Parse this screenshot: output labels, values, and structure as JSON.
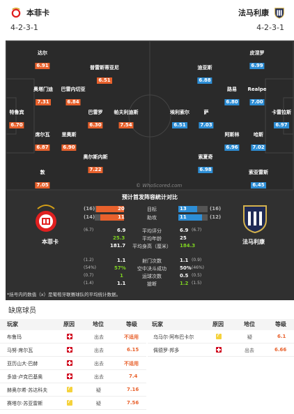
{
  "home": {
    "name": "本菲卡",
    "formation": "4-2-3-1",
    "color": "#e8612c",
    "players": [
      {
        "name": "达尔",
        "rating": "6.91"
      },
      {
        "name": "普雷斯蒂亚尼",
        "rating": "6.51"
      },
      {
        "name": "奥塔门迪",
        "rating": "7.31"
      },
      {
        "name": "巴雷内切亚",
        "rating": "6.84"
      },
      {
        "name": "特鲁宾",
        "rating": "6.70"
      },
      {
        "name": "巴雷罗",
        "rating": "6.30"
      },
      {
        "name": "帕夫利迪斯",
        "rating": "7.54"
      },
      {
        "name": "席尔瓦",
        "rating": "6.87"
      },
      {
        "name": "里奥斯",
        "rating": "6.90"
      },
      {
        "name": "奥尔斯内斯",
        "rating": "7.22"
      },
      {
        "name": "敦",
        "rating": "7.05"
      }
    ]
  },
  "away": {
    "name": "法马利康",
    "formation": "4-2-3-1",
    "color": "#2d8ed6",
    "players": [
      {
        "name": "皮涅罗",
        "rating": "6.99"
      },
      {
        "name": "迪亚斯",
        "rating": "6.88"
      },
      {
        "name": "路易",
        "rating": "6.80"
      },
      {
        "name": "Realpe",
        "rating": "7.00"
      },
      {
        "name": "卡雷拉斯",
        "rating": "6.97"
      },
      {
        "name": "埃利索尔",
        "rating": "6.51"
      },
      {
        "name": "萨",
        "rating": "7.03"
      },
      {
        "name": "阿斯林",
        "rating": "6.96"
      },
      {
        "name": "哈斯",
        "rating": "7.02"
      },
      {
        "name": "索夏奇",
        "rating": "6.98"
      },
      {
        "name": "索亚雷斯",
        "rating": "6.45"
      }
    ]
  },
  "watermark": "© WhoScored.com",
  "stats_panel": {
    "title": "预计首发阵容統计对比",
    "bars": [
      {
        "label": "目标",
        "home_prev": "(16)",
        "home": "20",
        "away": "13",
        "away_prev": "(16)",
        "home_frac": 0.6,
        "away_frac": 0.4
      },
      {
        "label": "助攻",
        "home_prev": "(14)",
        "home": "11",
        "away": "11",
        "away_prev": "(12)",
        "home_frac": 0.5,
        "away_frac": 0.5
      }
    ],
    "rows": [
      {
        "label": "平均评分",
        "home_prev": "(6.7)",
        "home": "6.9",
        "away": "6.9",
        "away_prev": "(6.7)"
      },
      {
        "label": "平均年龄",
        "home_prev": "",
        "home": "25.3",
        "away": "25",
        "away_prev": ""
      },
      {
        "label": "平均身高（厘米）",
        "home_prev": "",
        "home": "181.7",
        "away": "184.3",
        "away_prev": ""
      },
      {
        "label": "射门次数",
        "home_prev": "(1.2)",
        "home": "1.1",
        "away": "1.1",
        "away_prev": "(0.9)"
      },
      {
        "label": "空中决斗成功",
        "home_prev": "(54%)",
        "home": "57%",
        "away": "50%",
        "away_prev": "(46%)"
      },
      {
        "label": "运球次数",
        "home_prev": "(0.7)",
        "home": "1",
        "away": "0.5",
        "away_prev": "(0.5)"
      },
      {
        "label": "搶断",
        "home_prev": "(1.4)",
        "home": "1.1",
        "away": "1.2",
        "away_prev": "(1.5)"
      }
    ],
    "note": "*括号内的数值（x）是葡萄牙联赛球队的平均统计数据。"
  },
  "absent": {
    "title": "缺席球员",
    "headers": {
      "player": "玩家",
      "reason": "原因",
      "position": "地位",
      "rating": "等级"
    },
    "home": [
      {
        "player": "布鲁玛",
        "icon": "injury-icon",
        "position": "出去",
        "rating": "不适用"
      },
      {
        "player": "马努·席尔瓦",
        "icon": "injury-icon",
        "position": "出去",
        "rating": "6.15"
      },
      {
        "player": "亚历山大·巴赫",
        "icon": "injury-icon",
        "position": "出去",
        "rating": "不适用"
      },
      {
        "player": "多迪·卢克巴基奥",
        "icon": "injury-icon",
        "position": "出去",
        "rating": "7.4"
      },
      {
        "player": "赫奥尔希·苏达科夫",
        "icon": "doubtful-icon",
        "position": "疑",
        "rating": "7.16"
      },
      {
        "player": "赛塔尔·苏亚雷斯",
        "icon": "doubtful-icon",
        "position": "疑",
        "rating": "7.56"
      }
    ],
    "away": [
      {
        "player": "乌马尔·阿布巴卡尔",
        "icon": "doubtful-icon",
        "position": "疑",
        "rating": "6.1"
      },
      {
        "player": "佩德罗·邦多",
        "icon": "injury-icon",
        "position": "出去",
        "rating": "6.66"
      }
    ]
  }
}
